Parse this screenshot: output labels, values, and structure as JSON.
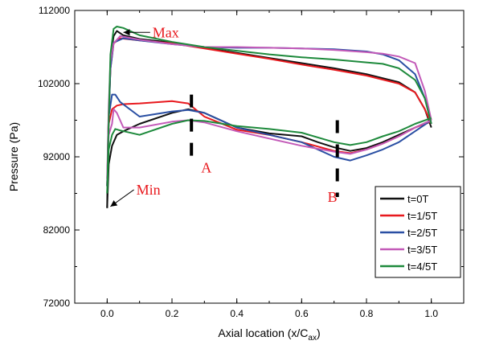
{
  "chart_data": {
    "type": "line",
    "title": "",
    "xlabel": "Axial location (x/C",
    "xlabel_sub": "ax",
    "xlabel_close": ")",
    "ylabel": "Pressure (Pa)",
    "xlim": [
      -0.1,
      1.1
    ],
    "ylim": [
      72000,
      112000
    ],
    "xticks": [
      "0.0",
      "0.2",
      "0.4",
      "0.6",
      "0.8",
      "1.0"
    ],
    "yticks": [
      "72000",
      "82000",
      "92000",
      "102000",
      "112000"
    ],
    "legend_position": "bottom-right",
    "annotations": [
      {
        "text": "Max",
        "x": 0.14,
        "y": 109000,
        "arrow_to": [
          0.05,
          109000
        ]
      },
      {
        "text": "Min",
        "x": 0.09,
        "y": 87500,
        "arrow_to": [
          0.01,
          85200
        ]
      },
      {
        "text": "A",
        "x": 0.29,
        "y": 90500
      },
      {
        "text": "B",
        "x": 0.68,
        "y": 86500
      }
    ],
    "section_markers": [
      {
        "x": 0.26,
        "y_from": 91000,
        "y_to": 100500
      },
      {
        "x": 0.71,
        "y_from": 86500,
        "y_to": 97000
      }
    ],
    "series": [
      {
        "name": "t=0T",
        "color": "#111111",
        "upper": [
          [
            0.0,
            85000
          ],
          [
            0.003,
            95000
          ],
          [
            0.01,
            104000
          ],
          [
            0.015,
            107000
          ],
          [
            0.02,
            108500
          ],
          [
            0.03,
            109200
          ],
          [
            0.05,
            108600
          ],
          [
            0.1,
            108100
          ],
          [
            0.2,
            107600
          ],
          [
            0.3,
            106900
          ],
          [
            0.4,
            106200
          ],
          [
            0.5,
            105500
          ],
          [
            0.6,
            104800
          ],
          [
            0.7,
            104100
          ],
          [
            0.8,
            103300
          ],
          [
            0.9,
            102200
          ],
          [
            0.95,
            100800
          ],
          [
            0.98,
            98500
          ],
          [
            1.0,
            96000
          ]
        ],
        "lower": [
          [
            0.0,
            85000
          ],
          [
            0.005,
            91000
          ],
          [
            0.015,
            93500
          ],
          [
            0.03,
            95000
          ],
          [
            0.05,
            95500
          ],
          [
            0.1,
            96500
          ],
          [
            0.2,
            98000
          ],
          [
            0.25,
            98500
          ],
          [
            0.3,
            98000
          ],
          [
            0.4,
            96000
          ],
          [
            0.5,
            95200
          ],
          [
            0.6,
            94800
          ],
          [
            0.65,
            94000
          ],
          [
            0.7,
            93300
          ],
          [
            0.75,
            92800
          ],
          [
            0.8,
            93200
          ],
          [
            0.85,
            94000
          ],
          [
            0.9,
            95000
          ],
          [
            0.95,
            96000
          ],
          [
            1.0,
            97000
          ]
        ]
      },
      {
        "name": "t=1/5T",
        "color": "#e8191e",
        "upper": [
          [
            0.0,
            88000
          ],
          [
            0.005,
            98000
          ],
          [
            0.01,
            104000
          ],
          [
            0.02,
            107500
          ],
          [
            0.04,
            108200
          ],
          [
            0.1,
            107900
          ],
          [
            0.2,
            107500
          ],
          [
            0.3,
            106800
          ],
          [
            0.4,
            106100
          ],
          [
            0.5,
            105400
          ],
          [
            0.6,
            104600
          ],
          [
            0.7,
            103900
          ],
          [
            0.8,
            103100
          ],
          [
            0.9,
            102000
          ],
          [
            0.95,
            100800
          ],
          [
            0.98,
            98500
          ],
          [
            1.0,
            96500
          ]
        ],
        "lower": [
          [
            0.0,
            88000
          ],
          [
            0.005,
            96500
          ],
          [
            0.015,
            98500
          ],
          [
            0.03,
            99000
          ],
          [
            0.05,
            99200
          ],
          [
            0.1,
            99300
          ],
          [
            0.2,
            99600
          ],
          [
            0.25,
            99300
          ],
          [
            0.3,
            97500
          ],
          [
            0.4,
            95700
          ],
          [
            0.5,
            95000
          ],
          [
            0.6,
            94000
          ],
          [
            0.7,
            92800
          ],
          [
            0.75,
            92500
          ],
          [
            0.8,
            93000
          ],
          [
            0.85,
            93800
          ],
          [
            0.9,
            94800
          ],
          [
            0.95,
            96000
          ],
          [
            1.0,
            96800
          ]
        ]
      },
      {
        "name": "t=2/5T",
        "color": "#2a4fa3",
        "upper": [
          [
            0.0,
            88000
          ],
          [
            0.005,
            97000
          ],
          [
            0.01,
            104000
          ],
          [
            0.02,
            107600
          ],
          [
            0.05,
            108200
          ],
          [
            0.1,
            107900
          ],
          [
            0.2,
            107400
          ],
          [
            0.3,
            107000
          ],
          [
            0.4,
            106900
          ],
          [
            0.5,
            106900
          ],
          [
            0.6,
            106800
          ],
          [
            0.7,
            106700
          ],
          [
            0.8,
            106400
          ],
          [
            0.85,
            106000
          ],
          [
            0.9,
            105200
          ],
          [
            0.95,
            103300
          ],
          [
            0.98,
            100000
          ],
          [
            1.0,
            96500
          ]
        ],
        "lower": [
          [
            0.0,
            88000
          ],
          [
            0.005,
            97500
          ],
          [
            0.015,
            100500
          ],
          [
            0.025,
            100500
          ],
          [
            0.04,
            99500
          ],
          [
            0.1,
            97500
          ],
          [
            0.2,
            98200
          ],
          [
            0.25,
            98400
          ],
          [
            0.3,
            98000
          ],
          [
            0.4,
            96000
          ],
          [
            0.5,
            95000
          ],
          [
            0.6,
            94000
          ],
          [
            0.7,
            92000
          ],
          [
            0.75,
            91500
          ],
          [
            0.8,
            92200
          ],
          [
            0.85,
            93000
          ],
          [
            0.9,
            94000
          ],
          [
            0.95,
            95500
          ],
          [
            1.0,
            97000
          ]
        ]
      },
      {
        "name": "t=3/5T",
        "color": "#c35ab8",
        "upper": [
          [
            0.0,
            89000
          ],
          [
            0.005,
            99000
          ],
          [
            0.01,
            105000
          ],
          [
            0.02,
            107500
          ],
          [
            0.04,
            108500
          ],
          [
            0.1,
            108000
          ],
          [
            0.2,
            107400
          ],
          [
            0.3,
            107000
          ],
          [
            0.4,
            107000
          ],
          [
            0.5,
            106900
          ],
          [
            0.6,
            106800
          ],
          [
            0.7,
            106600
          ],
          [
            0.8,
            106300
          ],
          [
            0.85,
            106100
          ],
          [
            0.9,
            105700
          ],
          [
            0.95,
            104800
          ],
          [
            0.98,
            101000
          ],
          [
            1.0,
            97000
          ]
        ],
        "lower": [
          [
            0.0,
            89000
          ],
          [
            0.005,
            95000
          ],
          [
            0.015,
            96500
          ],
          [
            0.02,
            98500
          ],
          [
            0.03,
            98000
          ],
          [
            0.05,
            96000
          ],
          [
            0.1,
            96000
          ],
          [
            0.2,
            96800
          ],
          [
            0.25,
            97000
          ],
          [
            0.3,
            96700
          ],
          [
            0.4,
            95500
          ],
          [
            0.5,
            94500
          ],
          [
            0.6,
            93500
          ],
          [
            0.7,
            92700
          ],
          [
            0.75,
            92400
          ],
          [
            0.8,
            93000
          ],
          [
            0.85,
            93800
          ],
          [
            0.9,
            94800
          ],
          [
            0.95,
            96000
          ],
          [
            1.0,
            97000
          ]
        ]
      },
      {
        "name": "t=4/5T",
        "color": "#1e8a3c",
        "upper": [
          [
            0.0,
            87000
          ],
          [
            0.005,
            97000
          ],
          [
            0.01,
            106000
          ],
          [
            0.02,
            109500
          ],
          [
            0.03,
            109800
          ],
          [
            0.05,
            109600
          ],
          [
            0.1,
            108600
          ],
          [
            0.2,
            107700
          ],
          [
            0.3,
            107000
          ],
          [
            0.4,
            106500
          ],
          [
            0.5,
            106000
          ],
          [
            0.6,
            105600
          ],
          [
            0.7,
            105300
          ],
          [
            0.8,
            104900
          ],
          [
            0.85,
            104700
          ],
          [
            0.9,
            104100
          ],
          [
            0.95,
            102500
          ],
          [
            0.98,
            100000
          ],
          [
            1.0,
            96500
          ]
        ],
        "lower": [
          [
            0.0,
            87000
          ],
          [
            0.005,
            93000
          ],
          [
            0.015,
            95000
          ],
          [
            0.025,
            95800
          ],
          [
            0.04,
            95600
          ],
          [
            0.1,
            95000
          ],
          [
            0.2,
            96500
          ],
          [
            0.25,
            97000
          ],
          [
            0.3,
            96900
          ],
          [
            0.4,
            96200
          ],
          [
            0.5,
            95800
          ],
          [
            0.6,
            95300
          ],
          [
            0.7,
            94000
          ],
          [
            0.75,
            93600
          ],
          [
            0.8,
            94000
          ],
          [
            0.85,
            94800
          ],
          [
            0.9,
            95500
          ],
          [
            0.95,
            96500
          ],
          [
            1.0,
            97300
          ]
        ]
      }
    ]
  }
}
